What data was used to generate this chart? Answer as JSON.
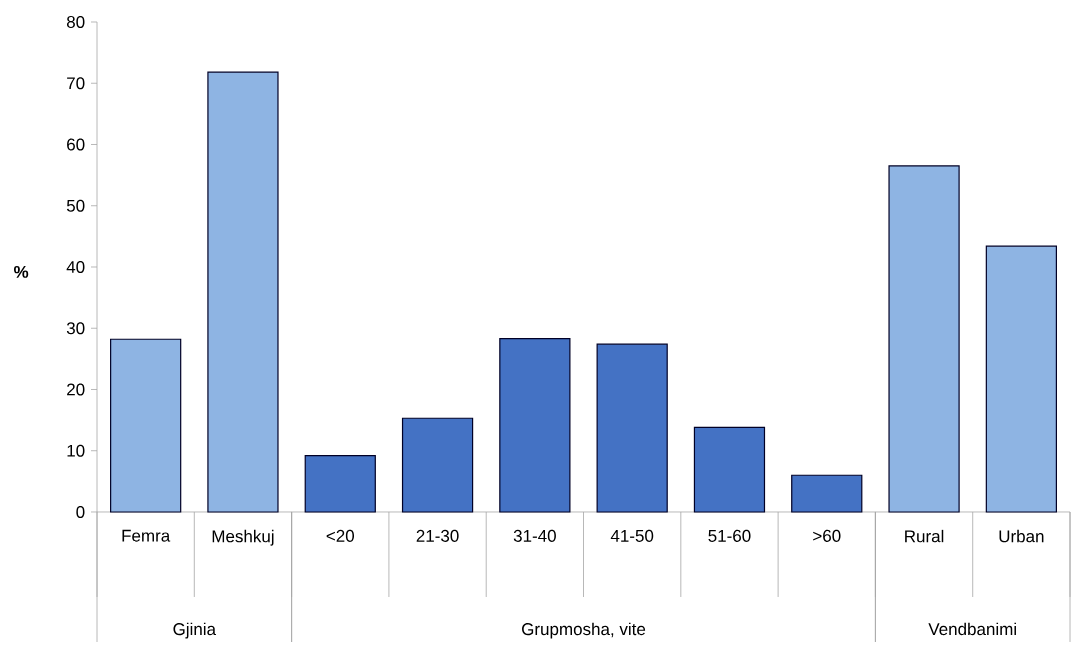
{
  "chart_data": {
    "type": "bar",
    "ylabel": "%",
    "categories": [
      "Femra",
      "Meshkuj",
      "<20",
      "21-30",
      "31-40",
      "41-50",
      "51-60",
      ">60",
      "Rural",
      "Urban"
    ],
    "values": [
      28.2,
      71.8,
      9.2,
      15.3,
      28.3,
      27.4,
      13.8,
      6.0,
      56.5,
      43.4
    ],
    "colors": [
      "#8eb4e3",
      "#8eb4e3",
      "#4472c4",
      "#4472c4",
      "#4472c4",
      "#4472c4",
      "#4472c4",
      "#4472c4",
      "#8eb4e3",
      "#8eb4e3"
    ],
    "ylim": [
      0,
      80
    ],
    "yticks": [
      0,
      10,
      20,
      30,
      40,
      50,
      60,
      70,
      80
    ],
    "annotations": [
      "Gjinia",
      "Grupmosha, vite",
      "Vendbanimi"
    ]
  }
}
